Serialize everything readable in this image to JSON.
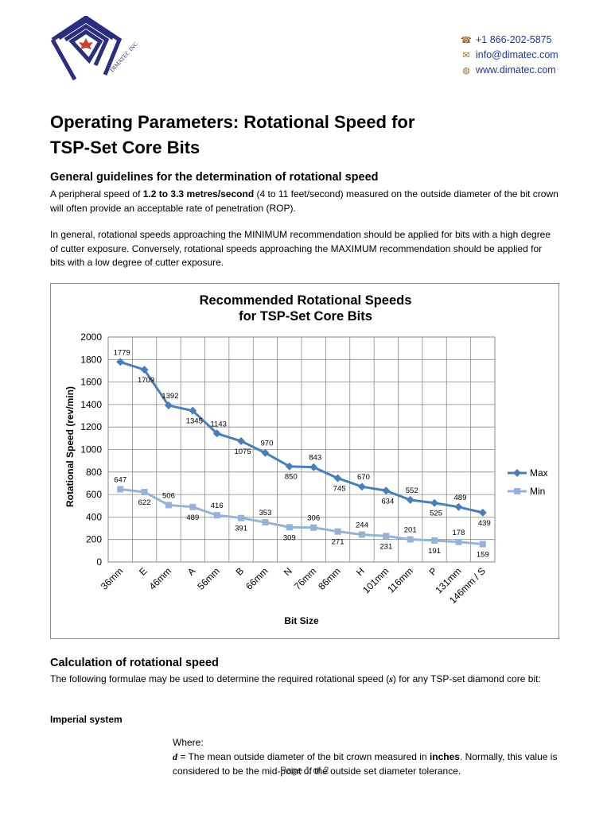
{
  "header": {
    "company_logo_text": "DIMATEC INC.",
    "phone": "+1 866-202-5875",
    "email": "info@dimatec.com",
    "website": "www.dimatec.com"
  },
  "title_line1": "Operating Parameters: Rotational Speed for",
  "title_line2": "TSP-Set Core Bits",
  "section1": {
    "heading": "General guidelines for the determination of rotational speed",
    "p1_before": "A peripheral speed of ",
    "p1_bold": "1.2 to 3.3 metres/second",
    "p1_after": " (4 to 11 feet/second) measured on the outside diameter of the bit crown will often provide an acceptable rate of penetration (ROP).",
    "p2": "In general, rotational speeds approaching the MINIMUM recommendation should be applied for bits with a high degree of cutter exposure. Conversely, rotational speeds approaching the MAXIMUM recommendation should be applied for bits with a low degree of cutter exposure."
  },
  "chart_data": {
    "type": "line",
    "title": "Recommended Rotational Speeds for TSP-Set Core Bits",
    "title_line1": "Recommended Rotational Speeds",
    "title_line2": "for TSP-Set Core Bits",
    "xlabel": "Bit Size",
    "ylabel": "Rotational Speed (rev/min)",
    "ylim": [
      0,
      2000
    ],
    "yticks": [
      0,
      200,
      400,
      600,
      800,
      1000,
      1200,
      1400,
      1600,
      1800,
      2000
    ],
    "grid": true,
    "legend_position": "right",
    "categories": [
      "36mm",
      "E",
      "46mm",
      "A",
      "56mm",
      "B",
      "66mm",
      "N",
      "76mm",
      "86mm",
      "H",
      "101mm",
      "116mm",
      "P",
      "131mm",
      "146mm / S"
    ],
    "series": [
      {
        "name": "Max",
        "color": "#4a7ebb",
        "marker": "diamond",
        "values": [
          1779,
          1709,
          1392,
          1345,
          1143,
          1075,
          970,
          850,
          843,
          745,
          670,
          634,
          552,
          525,
          489,
          439
        ]
      },
      {
        "name": "Min",
        "color": "#95b3d7",
        "marker": "square",
        "values": [
          647,
          622,
          506,
          489,
          416,
          391,
          353,
          309,
          306,
          271,
          244,
          231,
          201,
          191,
          178,
          159
        ]
      }
    ]
  },
  "section2": {
    "heading": "Calculation of rotational speed",
    "p_before": "The following formulae may be used to determine the required rotational speed (",
    "p_var": "s",
    "p_after": ") for any TSP-set diamond core bit:",
    "imperial_heading": "Imperial system",
    "where_label": "Where:",
    "d_var": "d",
    "d_text_before": " = The mean outside diameter of the bit crown measured in ",
    "d_text_bold": "inches",
    "d_text_after": ". Normally, this value is considered to be the mid-point of the outside set diameter tolerance."
  },
  "footer": {
    "page_label": "Page 1 of 2"
  }
}
